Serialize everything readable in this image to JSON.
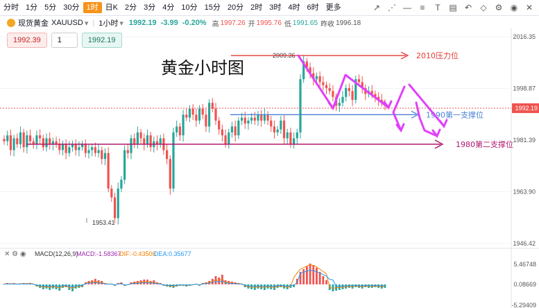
{
  "toolbar": {
    "timeframes": [
      "分时",
      "1分",
      "5分",
      "30分",
      "1时",
      "日K",
      "2分",
      "3分",
      "4分",
      "10分",
      "15分",
      "20分",
      "2时",
      "3时",
      "4时",
      "6时",
      "更多"
    ],
    "active": "1时"
  },
  "symbol": {
    "name": "现货黄金",
    "code": "XAUUSD",
    "interval": "1小时",
    "last": "1992.19",
    "change": "-3.99",
    "change_pct": "-0.20%",
    "high_label": "高",
    "high": "1997.26",
    "open_label": "开",
    "open": "1995.76",
    "low_label": "低",
    "low": "1991.65",
    "prev_label": "昨收",
    "prev": "1996.18"
  },
  "order": {
    "sell": "1992.39",
    "qty": "1",
    "buy": "1992.19"
  },
  "colors": {
    "up": "#26a69a",
    "down": "#ef5350",
    "annot": "#e040fb",
    "resist": "#e53935",
    "support1": "#4a7fd6",
    "support2": "#b0166d"
  },
  "chart_data": {
    "type": "candlestick",
    "title": "黄金小时图",
    "y_ticks": [
      "2016.35",
      "1998.87",
      "1981.39",
      "1963.90",
      "1946.42"
    ],
    "ylim": [
      1946.42,
      2016.35
    ],
    "last_price_tag": "1992.19",
    "closes": [
      1981,
      1983,
      1978,
      1982,
      1980,
      1984,
      1979,
      1983,
      1981,
      1980,
      1983,
      1982,
      1979,
      1982,
      1980,
      1981,
      1980,
      1978,
      1980,
      1977,
      1979,
      1980,
      1978,
      1979,
      1980,
      1977,
      1978,
      1979,
      1977,
      1978,
      1975,
      1977,
      1965,
      1962,
      1955,
      1965,
      1968,
      1978,
      1977,
      1982,
      1980,
      1984,
      1982,
      1980,
      1983,
      1979,
      1981,
      1980,
      1982,
      1978,
      1975,
      1965,
      1984,
      1986,
      1983,
      1990,
      1989,
      1992,
      1990,
      1988,
      1992,
      1990,
      1986,
      1994,
      1992,
      1988,
      1985,
      1983,
      1980,
      1984,
      1986,
      1983,
      1988,
      1989,
      1987,
      1988,
      1989,
      1988,
      1990,
      1988,
      1990,
      1988,
      1986,
      1984,
      1985,
      1988,
      1982,
      1984,
      1980,
      1982,
      1984,
      2002,
      2008,
      2006,
      2004,
      2002,
      2003,
      2001,
      2000,
      1999,
      1998,
      1996,
      1993,
      1994,
      1996,
      1999,
      1998,
      1995,
      2002,
      2001,
      1999,
      1997,
      1998,
      1997,
      1996,
      1995,
      1994,
      1993
    ],
    "extremes": {
      "low": "1953.41",
      "high": "2009.36"
    },
    "resistance": {
      "value": 2010,
      "label": "2010压力位"
    },
    "support1": {
      "value": 1990,
      "label": "1990第一支撑位"
    },
    "support2": {
      "value": 1980,
      "label": "1980第二支撑位"
    },
    "macd": {
      "label": "MACD(12,26,9)",
      "macd": "MACD:-1.58367",
      "dif": "DIF:-0.43506",
      "dea": "DEA:0.35677",
      "y_ticks": [
        "5.46748",
        "0.08669",
        "-5.29409"
      ]
    }
  }
}
